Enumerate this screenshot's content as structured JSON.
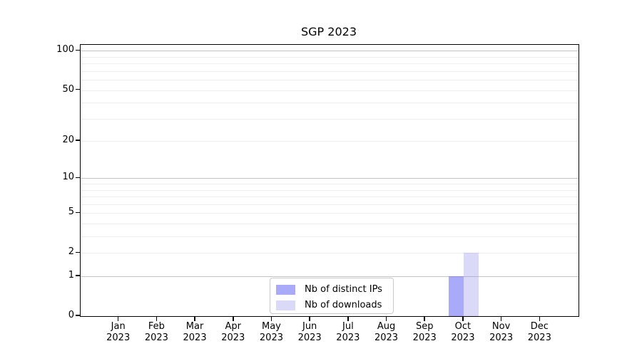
{
  "chart_data": {
    "type": "bar",
    "title": "SGP 2023",
    "x_tick_labels": [
      {
        "month": "Jan",
        "year": "2023"
      },
      {
        "month": "Feb",
        "year": "2023"
      },
      {
        "month": "Mar",
        "year": "2023"
      },
      {
        "month": "Apr",
        "year": "2023"
      },
      {
        "month": "May",
        "year": "2023"
      },
      {
        "month": "Jun",
        "year": "2023"
      },
      {
        "month": "Jul",
        "year": "2023"
      },
      {
        "month": "Aug",
        "year": "2023"
      },
      {
        "month": "Sep",
        "year": "2023"
      },
      {
        "month": "Oct",
        "year": "2023"
      },
      {
        "month": "Nov",
        "year": "2023"
      },
      {
        "month": "Dec",
        "year": "2023"
      }
    ],
    "series": [
      {
        "name": "Nb of distinct IPs",
        "color": "#6464f5",
        "alpha": 0.55,
        "values": [
          0,
          0,
          0,
          0,
          0,
          0,
          0,
          0,
          0,
          1,
          0,
          0
        ]
      },
      {
        "name": "Nb of downloads",
        "color": "#9696eb",
        "alpha": 0.35,
        "values": [
          0,
          0,
          0,
          0,
          0,
          0,
          0,
          0,
          0,
          2,
          0,
          0
        ]
      }
    ],
    "y_axis": {
      "scale": "log1p",
      "tick_values": [
        0,
        1,
        2,
        5,
        10,
        20,
        50,
        100
      ],
      "major_gridlines": [
        1,
        10,
        100
      ],
      "minor_gridlines": [
        2,
        3,
        4,
        5,
        6,
        7,
        8,
        9,
        20,
        30,
        40,
        50,
        60,
        70,
        80,
        90
      ],
      "ylim": [
        0,
        111
      ]
    },
    "legend": {
      "position": "lower center",
      "items": [
        "Nb of distinct IPs",
        "Nb of downloads"
      ]
    },
    "grid": "horizontal major+minor",
    "colors": {
      "bar_distinct_ips_on_white": "#aaaaf9",
      "bar_downloads_on_white": "#dcdcf8",
      "major_grid": "#c3c3c3",
      "minor_grid": "#ededed",
      "spine": "#000000",
      "legend_border": "#c9c9c9",
      "text": "#000000"
    }
  }
}
